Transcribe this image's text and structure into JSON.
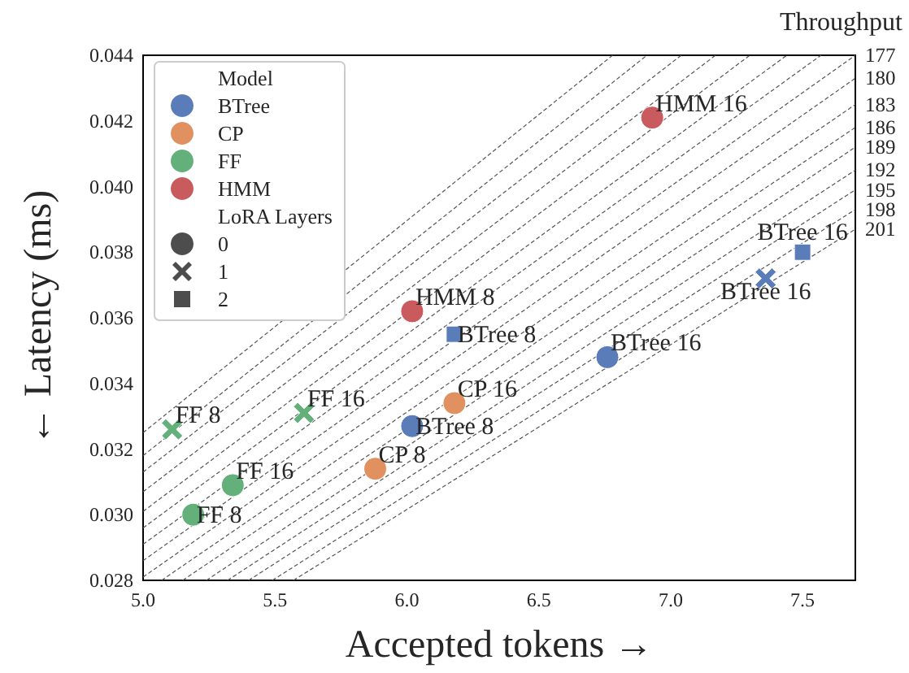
{
  "chart_data": {
    "type": "scatter",
    "xlabel": "Accepted tokens →",
    "ylabel": "← Latency (ms)",
    "xlim": [
      5.0,
      7.7
    ],
    "xticks": [
      {
        "value": 5,
        "label": "5.0"
      },
      {
        "value": 5.5,
        "label": "5.5"
      },
      {
        "value": 6,
        "label": "6.0"
      },
      {
        "value": 6.5,
        "label": "6.5"
      },
      {
        "value": 7,
        "label": "7.0"
      },
      {
        "value": 7.5,
        "label": "7.5"
      }
    ],
    "ylim": [
      0.028,
      0.044
    ],
    "yticks": [
      0.028,
      {
        "value": 0.03,
        "label": "0.030"
      },
      0.032,
      0.034,
      0.036,
      0.038,
      {
        "value": 0.04,
        "label": "0.040"
      },
      0.042,
      0.044
    ],
    "legend": "top left",
    "legend_title": [
      "Model",
      "LoRA Layers"
    ],
    "series": [
      {
        "type": "line",
        "color": "#555555",
        "line_style": "dashed",
        "marker": "none",
        "x": [
          5.0,
          6.78
        ],
        "values": [
          0.0325,
          0.044
        ]
      },
      {
        "type": "line",
        "color": "#555555",
        "line_style": "dashed",
        "marker": "none",
        "x": [
          5.0,
          6.91
        ],
        "values": [
          0.0318,
          0.044
        ]
      },
      {
        "type": "line",
        "color": "#555555",
        "line_style": "dashed",
        "marker": "none",
        "x": [
          5.0,
          7.04
        ],
        "values": [
          0.0313,
          0.044
        ]
      },
      {
        "type": "line",
        "color": "#555555",
        "line_style": "dashed",
        "marker": "none",
        "x": [
          5.0,
          7.17
        ],
        "values": [
          0.0307,
          0.044
        ]
      },
      {
        "type": "line",
        "color": "#555555",
        "line_style": "dashed",
        "marker": "none",
        "x": [
          5.0,
          7.3
        ],
        "values": [
          0.0301,
          0.044
        ]
      },
      {
        "type": "line",
        "color": "#555555",
        "line_style": "dashed",
        "marker": "none",
        "x": [
          5.0,
          7.44
        ],
        "values": [
          0.0296,
          0.044
        ]
      },
      {
        "type": "line",
        "color": "#555555",
        "line_style": "dashed",
        "marker": "none",
        "x": [
          5.0,
          7.57
        ],
        "values": [
          0.0291,
          0.044
        ]
      },
      {
        "type": "line",
        "name": "177",
        "color": "#555555",
        "line_style": "dashed",
        "marker": "none",
        "x": [
          5.0,
          7.7
        ],
        "values": [
          0.0286,
          0.044
        ]
      },
      {
        "type": "line",
        "name": "180",
        "color": "#555555",
        "line_style": "dashed",
        "marker": "none",
        "x": [
          5.0,
          7.7
        ],
        "values": [
          0.0281,
          0.0433
        ]
      },
      {
        "type": "line",
        "name": "183",
        "color": "#555555",
        "line_style": "dashed",
        "marker": "none",
        "x": [
          5.07,
          7.7
        ],
        "values": [
          0.028,
          0.0425
        ]
      },
      {
        "type": "line",
        "name": "186",
        "color": "#555555",
        "line_style": "dashed",
        "marker": "none",
        "x": [
          5.15,
          7.7
        ],
        "values": [
          0.028,
          0.0418
        ]
      },
      {
        "type": "line",
        "name": "189",
        "color": "#555555",
        "line_style": "dashed",
        "marker": "none",
        "x": [
          5.24,
          7.7
        ],
        "values": [
          0.028,
          0.0412
        ]
      },
      {
        "type": "line",
        "name": "192",
        "color": "#555555",
        "line_style": "dashed",
        "marker": "none",
        "x": [
          5.32,
          7.7
        ],
        "values": [
          0.028,
          0.0405
        ]
      },
      {
        "type": "line",
        "name": "195",
        "color": "#555555",
        "line_style": "dashed",
        "marker": "none",
        "x": [
          5.4,
          7.7
        ],
        "values": [
          0.028,
          0.0399
        ]
      },
      {
        "type": "line",
        "name": "198",
        "color": "#555555",
        "line_style": "dashed",
        "marker": "none",
        "x": [
          5.49,
          7.7
        ],
        "values": [
          0.028,
          0.0393
        ]
      },
      {
        "type": "line",
        "name": "201",
        "color": "#555555",
        "line_style": "dashed",
        "marker": "none",
        "x": [
          5.57,
          7.7
        ],
        "values": [
          0.028,
          0.0387
        ]
      },
      {
        "color": "#5a7dba",
        "marker": "circle",
        "x": [
          6.02,
          6.76
        ],
        "values": [
          0.0327,
          0.0348
        ]
      },
      {
        "color": "#5a7dba",
        "marker": "cross",
        "x": [
          7.36
        ],
        "values": [
          0.0372
        ]
      },
      {
        "color": "#5a7dba",
        "marker": "square",
        "x": [
          6.18,
          7.5
        ],
        "values": [
          0.0355,
          0.038
        ]
      },
      {
        "color": "#e0915f",
        "marker": "circle",
        "x": [
          5.88,
          6.18
        ],
        "values": [
          0.0314,
          0.0334
        ]
      },
      {
        "color": "#64b07a",
        "marker": "circle",
        "x": [
          5.19,
          5.34
        ],
        "values": [
          0.03,
          0.0309
        ]
      },
      {
        "color": "#64b07a",
        "marker": "cross",
        "x": [
          5.11,
          5.61
        ],
        "values": [
          0.0326,
          0.0331
        ]
      },
      {
        "color": "#c95b5e",
        "marker": "circle",
        "x": [
          6.02,
          6.93
        ],
        "values": [
          0.0362,
          0.0421
        ]
      },
      {
        "name": "BTree",
        "color": "#5a7dba",
        "marker": "circle"
      },
      {
        "name": "CP",
        "color": "#e0915f",
        "marker": "circle"
      },
      {
        "name": "FF",
        "color": "#64b07a",
        "marker": "circle"
      },
      {
        "name": "HMM",
        "color": "#c95b5e",
        "marker": "circle"
      },
      {
        "name": "0",
        "marker": "circle"
      },
      {
        "name": "1",
        "marker": "cross"
      },
      {
        "name": "2",
        "marker": "square"
      }
    ],
    "annotations": [
      "Throughput",
      {
        "text": "HMM 16",
        "x": 6.93,
        "y": 0.0421
      },
      {
        "text": "HMM 8",
        "x": 6.02,
        "y": 0.0362
      },
      {
        "text": "BTree 8",
        "x": 6.18,
        "y": 0.0355
      },
      {
        "text": "BTree 16",
        "x": 6.76,
        "y": 0.0348
      },
      {
        "text": "CP 16",
        "x": 6.18,
        "y": 0.0334
      },
      {
        "text": "BTree 8",
        "x": 6.02,
        "y": 0.0327
      },
      {
        "text": "CP 8",
        "x": 5.88,
        "y": 0.0314
      },
      {
        "text": "FF 16",
        "x": 5.34,
        "y": 0.0309
      },
      {
        "text": "FF 8",
        "x": 5.19,
        "y": 0.03
      },
      {
        "text": "FF 8",
        "x": 5.11,
        "y": 0.0326
      },
      {
        "text": "FF 16",
        "x": 5.61,
        "y": 0.0331
      },
      {
        "text": "BTree 16",
        "x": 7.5,
        "y": 0.038
      },
      {
        "text": "BTree 16",
        "x": 7.36,
        "y": 0.0372
      }
    ]
  }
}
